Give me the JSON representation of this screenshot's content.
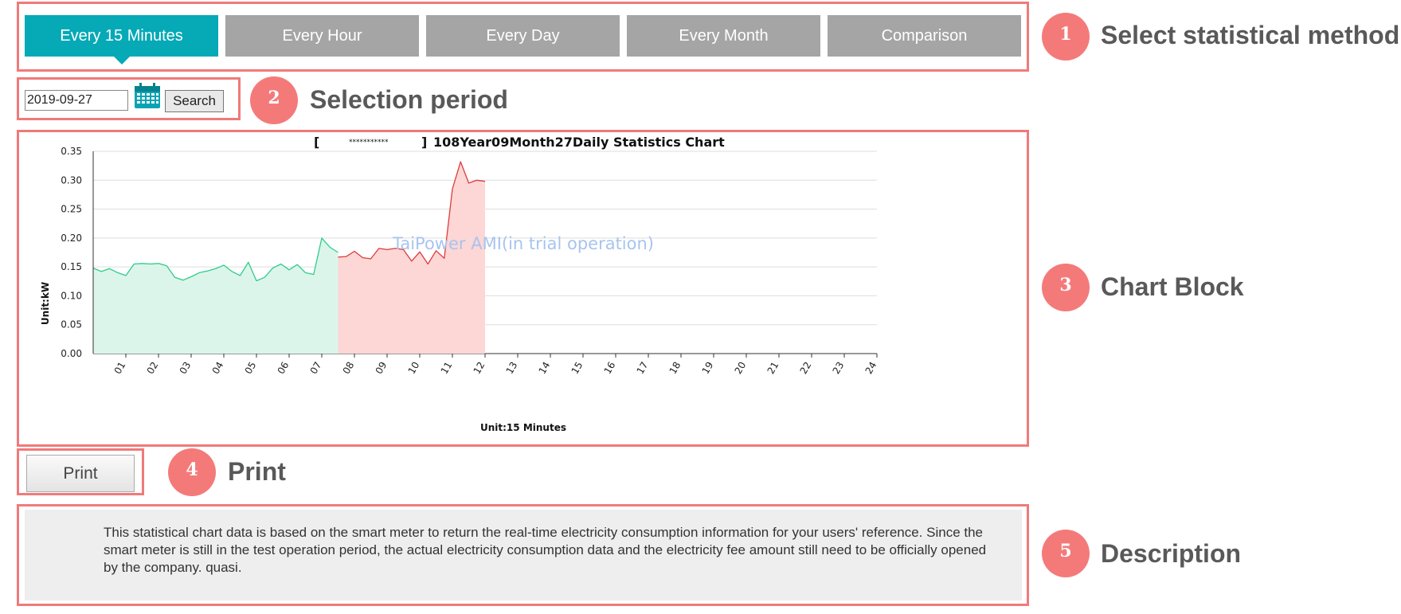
{
  "tabs": [
    {
      "label": "Every 15 Minutes",
      "active": true
    },
    {
      "label": "Every Hour",
      "active": false
    },
    {
      "label": "Every Day",
      "active": false
    },
    {
      "label": "Every Month",
      "active": false
    },
    {
      "label": "Comparison",
      "active": false
    }
  ],
  "period": {
    "date_value": "2019-09-27",
    "search_label": "Search"
  },
  "print": {
    "label": "Print"
  },
  "description": "This statistical chart data is based on the smart meter to return the real-time electricity consumption information for your users' reference. Since the smart meter is still in the test operation period, the actual electricity consumption data and the electricity fee amount still need to be officially opened by the company. quasi.",
  "annotations": [
    {
      "number": "1",
      "label": "Select statistical method"
    },
    {
      "number": "2",
      "label": "Selection period"
    },
    {
      "number": "3",
      "label": "Chart Block"
    },
    {
      "number": "4",
      "label": "Print"
    },
    {
      "number": "5",
      "label": "Description"
    }
  ],
  "colors": {
    "accent": "#06a9b6",
    "tab_inactive": "#a5a5a5",
    "annotation": "#f47a7a",
    "series_offpeak": "#2ecc8a",
    "series_peak": "#e03a3a"
  },
  "icons": {
    "calendar": "calendar-icon"
  },
  "chart_data": {
    "type": "area",
    "title_bracket_open": "[",
    "title_masked": "***********",
    "title_bracket_close": "]",
    "title": "108Year09Month27Daily Statistics Chart",
    "watermark": "TaiPower AMI(in trial operation)",
    "ylabel": "Unit:kW",
    "xlabel": "Unit:15 Minutes",
    "ylim": [
      0,
      0.35
    ],
    "xlim": [
      0,
      24
    ],
    "yticks": [
      "0.00",
      "0.05",
      "0.10",
      "0.15",
      "0.20",
      "0.25",
      "0.30",
      "0.35"
    ],
    "xticks": [
      "01",
      "02",
      "03",
      "04",
      "05",
      "06",
      "07",
      "08",
      "09",
      "10",
      "11",
      "12",
      "13",
      "14",
      "15",
      "16",
      "17",
      "18",
      "19",
      "20",
      "21",
      "22",
      "23",
      "24"
    ],
    "grid": true,
    "legend": "none",
    "series": [
      {
        "x": [
          0,
          0.25,
          0.5,
          0.75,
          1,
          1.25,
          1.5,
          1.75,
          2,
          2.25,
          2.5,
          2.75,
          3,
          3.25,
          3.5,
          3.75,
          4,
          4.25,
          4.5,
          4.75,
          5,
          5.25,
          5.5,
          5.75,
          6,
          6.25,
          6.5,
          6.75,
          7,
          7.25,
          7.5
        ],
        "values": [
          0.148,
          0.142,
          0.147,
          0.14,
          0.135,
          0.155,
          0.156,
          0.155,
          0.156,
          0.152,
          0.132,
          0.127,
          0.133,
          0.14,
          0.143,
          0.147,
          0.153,
          0.142,
          0.135,
          0.158,
          0.126,
          0.132,
          0.148,
          0.155,
          0.145,
          0.154,
          0.14,
          0.137,
          0.2,
          0.184,
          0.175
        ]
      },
      {
        "x": [
          7.5,
          7.75,
          8,
          8.25,
          8.5,
          8.75,
          9,
          9.25,
          9.5,
          9.75,
          10,
          10.25,
          10.5,
          10.75,
          11,
          11.25,
          11.5,
          11.75,
          12
        ],
        "values": [
          0.167,
          0.168,
          0.177,
          0.166,
          0.164,
          0.182,
          0.18,
          0.182,
          0.18,
          0.16,
          0.176,
          0.155,
          0.178,
          0.165,
          0.285,
          0.332,
          0.295,
          0.3,
          0.298
        ]
      }
    ]
  }
}
